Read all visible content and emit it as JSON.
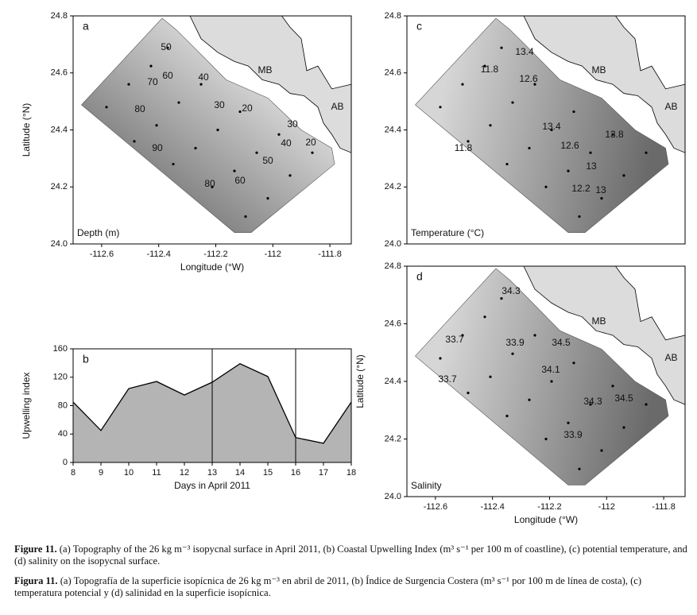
{
  "chart_data": [
    {
      "type": "contour_map",
      "panel_label": "a",
      "label": "Depth (m)",
      "xlim": [
        -112.7,
        -111.725
      ],
      "ylim": [
        24.0,
        24.8
      ],
      "xticks": [
        -112.6,
        -112.4,
        -112.2,
        -112.0,
        -111.8
      ],
      "yticks": [
        {
          "value": 24.0,
          "label": "24.0"
        },
        24.2,
        24.4,
        24.6,
        24.8
      ],
      "xlabel": "Longitude (°W)",
      "ylabel": "Latitude (°N)",
      "colormap": [
        "#6c6c6c",
        "#e4e4e4"
      ],
      "gradient": "southwest-dark",
      "contour_labels": [
        50,
        60,
        70,
        80,
        90,
        40,
        30,
        20,
        30,
        40,
        20,
        50,
        60,
        80
      ],
      "places": [
        "MB",
        "AB"
      ]
    },
    {
      "type": "area",
      "panel_label": "b",
      "x": [
        8,
        9,
        10,
        11,
        12,
        13,
        14,
        15,
        16,
        17,
        18
      ],
      "values": [
        85,
        45,
        104,
        114,
        95,
        113,
        139,
        121,
        35,
        27,
        85
      ],
      "xlim": [
        8,
        18
      ],
      "ylim": [
        0,
        160
      ],
      "xticks": [
        8,
        9,
        10,
        11,
        12,
        13,
        14,
        15,
        16,
        17,
        18
      ],
      "yticks": [
        0,
        40,
        80,
        120,
        160
      ],
      "vlines": [
        13,
        16
      ],
      "xlabel": "Days in April 2011",
      "ylabel": "Upwelling index",
      "color": "#b4b4b4"
    },
    {
      "type": "contour_map",
      "panel_label": "c",
      "label": "Temperature (°C)",
      "xlim": [
        -112.7,
        -111.725
      ],
      "ylim": [
        24.0,
        24.8
      ],
      "yticks": [
        {
          "value": 24.0,
          "label": "24.0"
        },
        24.2,
        24.4,
        24.6,
        24.8
      ],
      "colormap": [
        "#d6d6d6",
        "#6a6a6a"
      ],
      "gradient": "east-dark",
      "contour_labels": [
        13.4,
        11.8,
        12.6,
        13.4,
        13.8,
        12.6,
        11.8,
        13,
        12.2,
        13
      ],
      "places": [
        "MB",
        "AB"
      ]
    },
    {
      "type": "contour_map",
      "panel_label": "d",
      "label": "Salinity",
      "xlim": [
        -112.7,
        -111.725
      ],
      "ylim": [
        24.0,
        24.8
      ],
      "xticks": [
        -112.6,
        -112.4,
        -112.2,
        -112.0,
        -111.8
      ],
      "yticks": [
        {
          "value": 24.0,
          "label": "24.0"
        },
        24.2,
        24.4,
        24.6,
        24.8
      ],
      "xlabel": "Longitude (°W)",
      "ylabel": "Latitude (°N)",
      "colormap": [
        "#d6d6d6",
        "#6a6a6a"
      ],
      "gradient": "east-dark",
      "contour_labels": [
        34.3,
        33.7,
        33.9,
        34.5,
        34.1,
        33.7,
        34.3,
        34.5,
        33.9
      ],
      "places": [
        "MB",
        "AB"
      ]
    }
  ],
  "caption": {
    "en": {
      "label": "Figure 11.",
      "text": "(a) Topography of the 26 kg m⁻³ isopycnal surface in April 2011, (b) Coastal Upwelling Index (m³ s⁻¹ per 100 m of coastline), (c) potential temperature, and (d) salinity on the isopycnal surface."
    },
    "es": {
      "label": "Figura 11.",
      "text": "(a) Topografía de la superficie isopícnica de 26 kg m⁻³ en abril de 2011, (b) Índice de Surgencia Costera (m³ s⁻¹ por 100 m de línea de costa), (c) temperatura potencial y (d) salinidad en la superficie isopícnica."
    }
  }
}
